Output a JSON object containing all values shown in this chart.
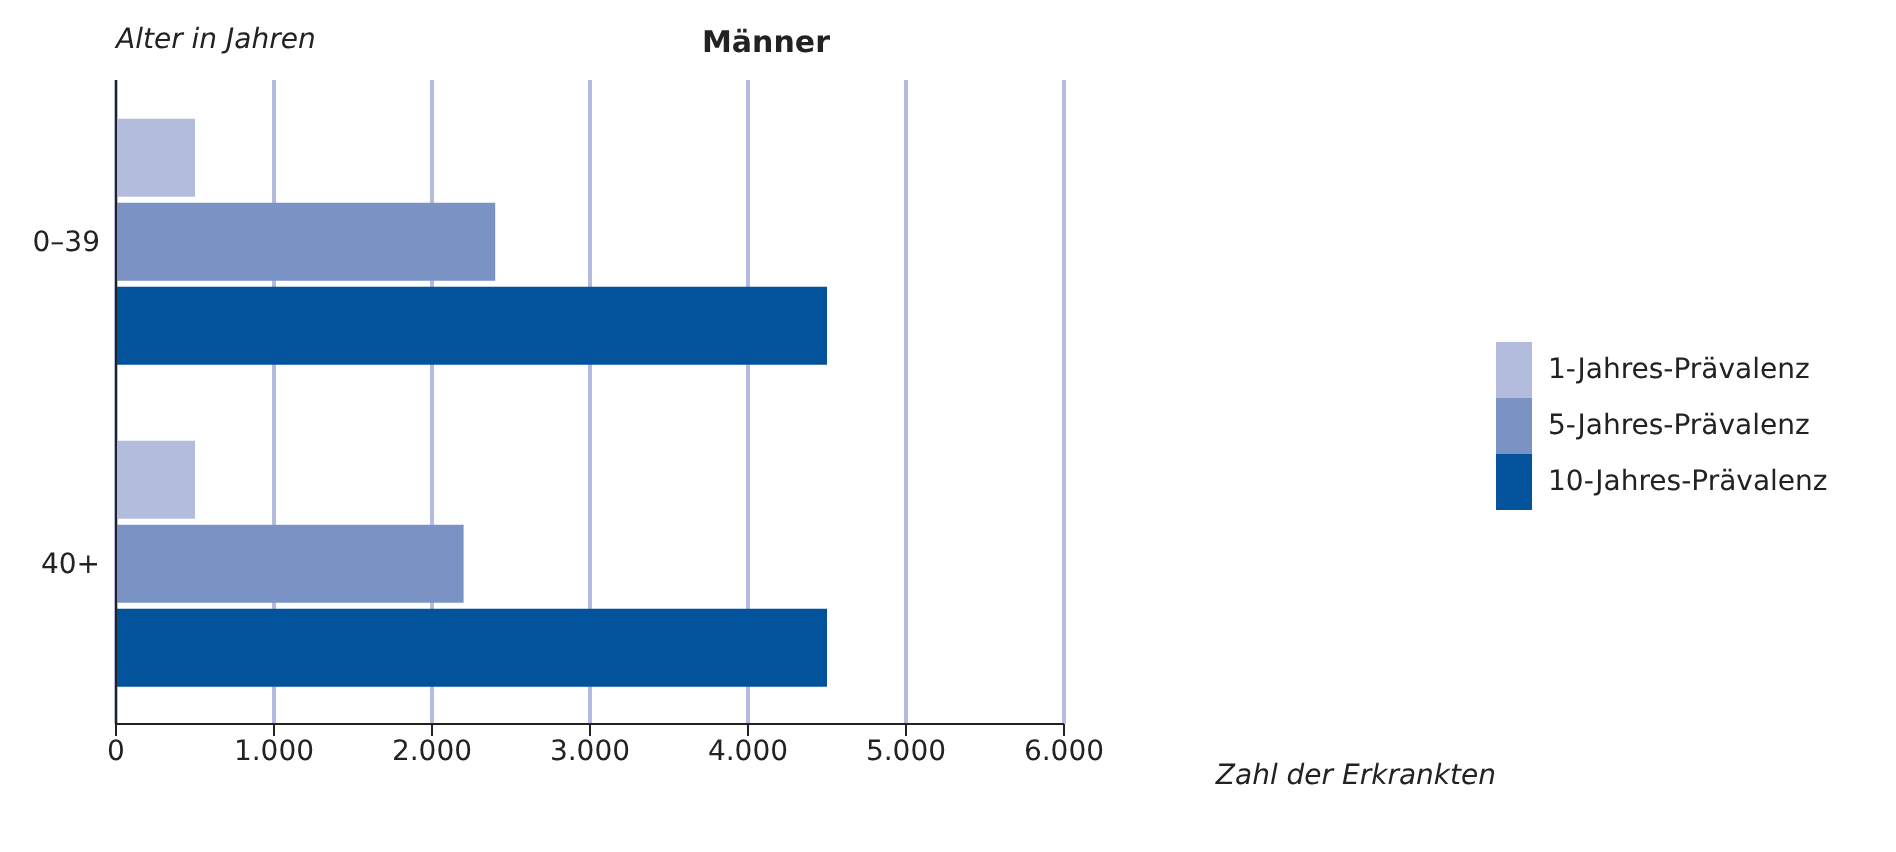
{
  "chart_data": {
    "type": "bar",
    "orientation": "horizontal",
    "title": "Männer",
    "ylabel": "Alter in Jahren",
    "xlabel": "Zahl der Erkrankten",
    "categories": [
      "0–39",
      "40+"
    ],
    "series": [
      {
        "name": "1-Jahres-Prävalenz",
        "color": "#b3bcdd",
        "values": [
          500,
          500
        ]
      },
      {
        "name": "5-Jahres-Prävalenz",
        "color": "#7b93c4",
        "values": [
          2400,
          2200
        ]
      },
      {
        "name": "10-Jahres-Prävalenz",
        "color": "#02529c",
        "values": [
          4500,
          4500
        ]
      }
    ],
    "xlim": [
      0,
      6000
    ],
    "xticks": [
      0,
      {
        "value": 1000,
        "label": "1.000"
      },
      {
        "value": 2000,
        "label": "2.000"
      },
      {
        "value": 3000,
        "label": "3.000"
      },
      {
        "value": 4000,
        "label": "4.000"
      },
      {
        "value": 5000,
        "label": "5.000"
      },
      {
        "value": 6000,
        "label": "6.000"
      }
    ],
    "grid": "x",
    "legend": "right"
  }
}
